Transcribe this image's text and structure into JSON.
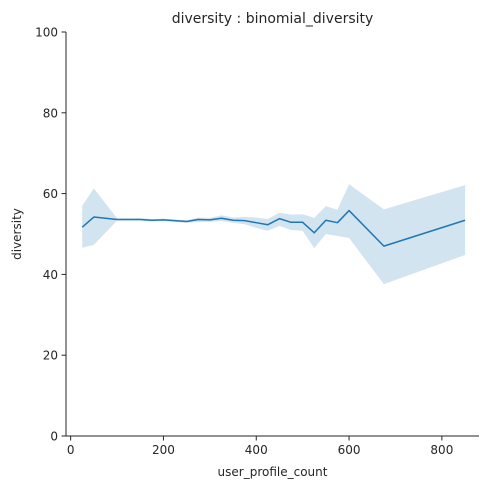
{
  "chart_data": {
    "type": "line",
    "title": "diversity : binomial_diversity",
    "xlabel": "user_profile_count",
    "ylabel": "diversity",
    "xlim": [
      -10,
      880
    ],
    "ylim": [
      0,
      100
    ],
    "xticks": [
      0,
      200,
      400,
      600,
      800
    ],
    "yticks": [
      0,
      20,
      40,
      60,
      80,
      100
    ],
    "grid": false,
    "legend": "none",
    "colors": {
      "line": "#1f77b4",
      "band": "#1f77b4"
    },
    "series": [
      {
        "x": [
          25,
          50,
          100,
          150,
          175,
          200,
          250,
          275,
          300,
          325,
          350,
          375,
          400,
          425,
          450,
          475,
          500,
          525,
          550,
          575,
          600,
          675,
          850
        ],
        "y": [
          51.7,
          54.2,
          53.6,
          53.6,
          53.4,
          53.5,
          53.1,
          53.6,
          53.5,
          53.9,
          53.4,
          53.3,
          52.8,
          52.3,
          53.8,
          52.9,
          52.9,
          50.3,
          53.4,
          52.8,
          55.8,
          47.0,
          53.4
        ],
        "lower": [
          46.6,
          47.3,
          53.3,
          53.3,
          53.1,
          53.2,
          52.8,
          53.0,
          53.0,
          53.2,
          52.8,
          52.4,
          51.5,
          50.8,
          52.0,
          51.0,
          50.8,
          46.5,
          50.0,
          49.5,
          49.0,
          37.6,
          44.8
        ],
        "upper": [
          57.0,
          61.3,
          53.9,
          53.9,
          53.7,
          53.8,
          53.4,
          54.1,
          54.0,
          54.6,
          54.1,
          54.2,
          54.1,
          53.7,
          55.3,
          54.8,
          54.9,
          54.0,
          56.9,
          56.0,
          62.3,
          56.1,
          62.1
        ]
      }
    ]
  }
}
